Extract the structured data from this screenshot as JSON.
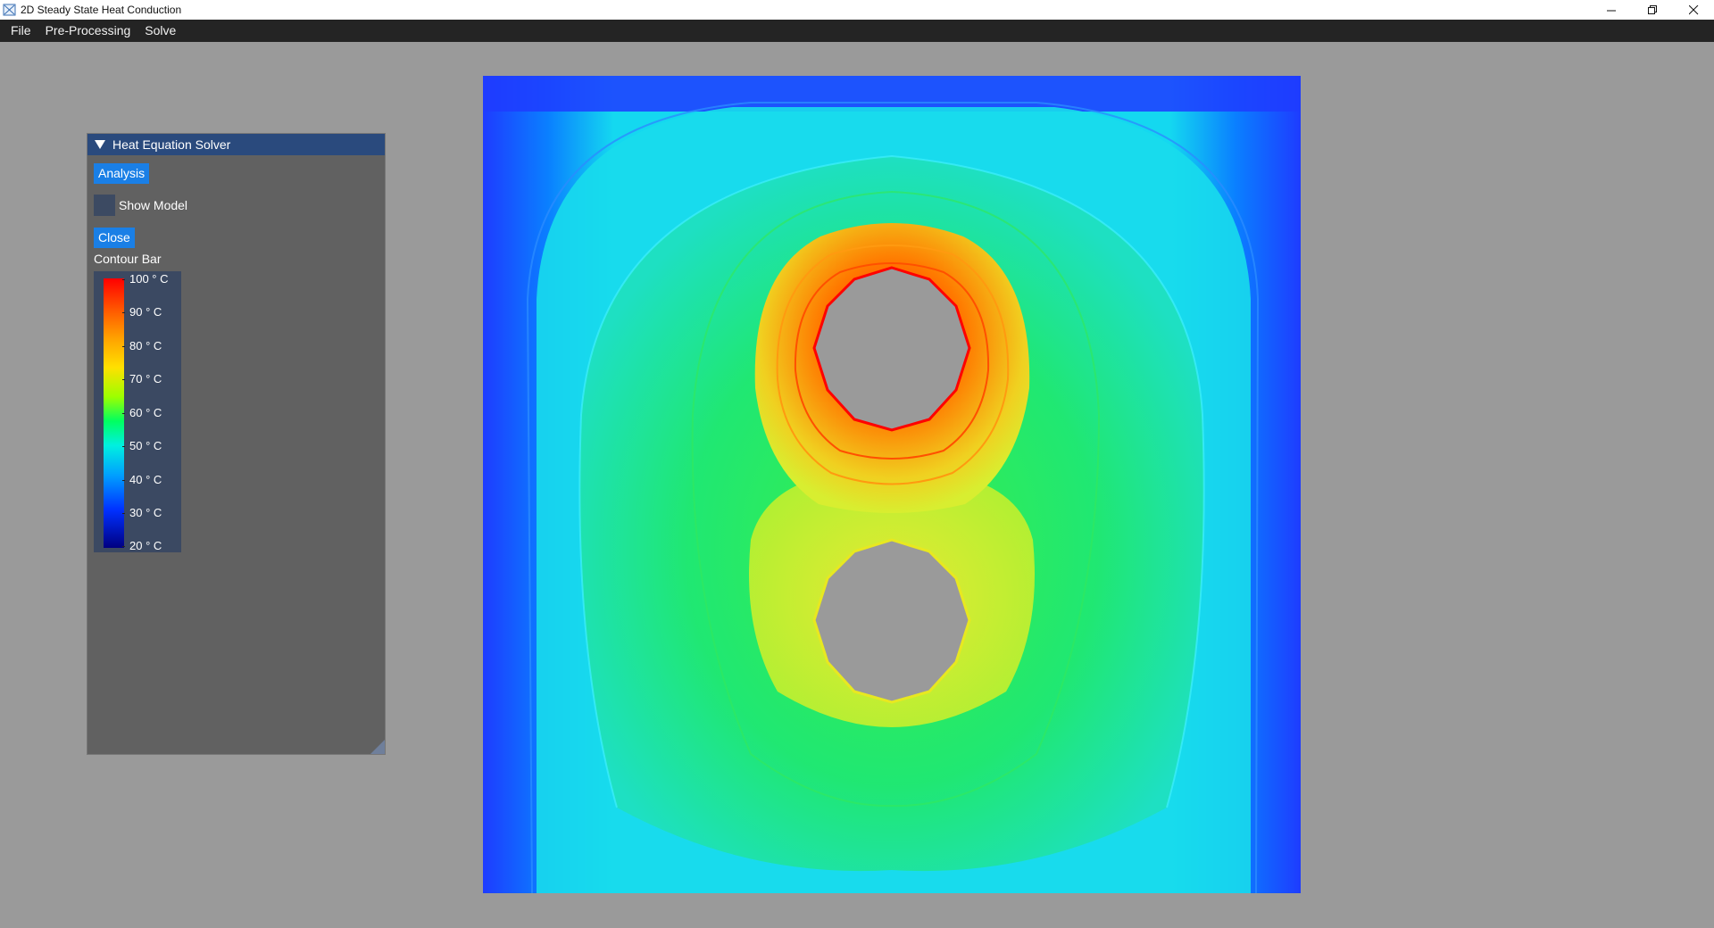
{
  "window": {
    "title": "2D Steady State Heat Conduction",
    "controls": [
      "minimize",
      "restore",
      "close"
    ]
  },
  "menu": {
    "items": [
      "File",
      "Pre-Processing",
      "Solve"
    ]
  },
  "panel": {
    "title": "Heat Equation Solver",
    "analysis_label": "Analysis",
    "show_model_label": "Show Model",
    "show_model_checked": false,
    "close_label": "Close",
    "contour_title": "Contour Bar",
    "contour_labels": [
      "100 ° C",
      "90 ° C",
      "80 ° C",
      "70 ° C",
      "60 ° C",
      "50 ° C",
      "40 ° C",
      "30 ° C",
      "20 ° C"
    ]
  },
  "plot": {
    "colormap": [
      "#ff0000",
      "#ff8000",
      "#ffff00",
      "#00ff00",
      "#00ffff",
      "#0000ff"
    ],
    "background": "#9a9a9a"
  }
}
